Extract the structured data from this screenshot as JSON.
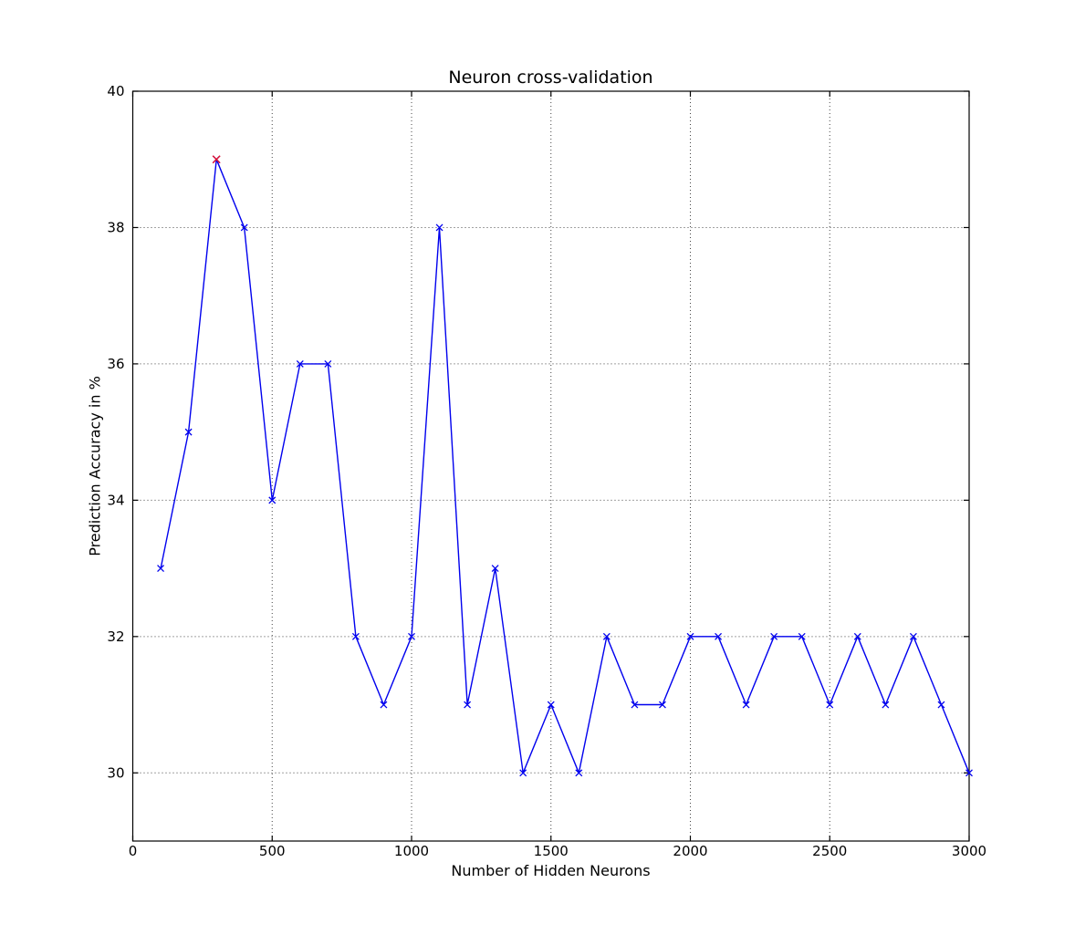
{
  "figure": {
    "background_color": "#ffffff",
    "axes_color": "#000000",
    "grid_color": "#444444"
  },
  "chart_data": {
    "type": "line",
    "title": "Neuron cross-validation",
    "xlabel": "Number of Hidden Neurons",
    "ylabel": "Prediction Accuracy in %",
    "xlim": [
      0,
      3000
    ],
    "ylim": [
      29,
      40
    ],
    "xticks": [
      0,
      500,
      1000,
      1500,
      2000,
      2500,
      3000
    ],
    "yticks": [
      30,
      32,
      34,
      36,
      38,
      40
    ],
    "grid": true,
    "grid_linestyle": "dotted",
    "series": [
      {
        "color": "#0000ee",
        "marker": "x",
        "x": [
          100,
          200,
          300,
          400,
          500,
          600,
          700,
          800,
          900,
          1000,
          1100,
          1200,
          1300,
          1400,
          1500,
          1600,
          1700,
          1800,
          1900,
          2000,
          2100,
          2200,
          2300,
          2400,
          2500,
          2600,
          2700,
          2800,
          2900,
          3000
        ],
        "values": [
          33,
          35,
          39,
          38,
          34,
          36,
          36,
          32,
          31,
          32,
          38,
          31,
          33,
          30,
          31,
          30,
          32,
          31,
          31,
          32,
          32,
          31,
          32,
          32,
          31,
          32,
          31,
          32,
          31,
          30
        ]
      }
    ],
    "highlight_point": {
      "x": 300,
      "y": 39,
      "color": "#dd1133",
      "marker": "x"
    }
  }
}
